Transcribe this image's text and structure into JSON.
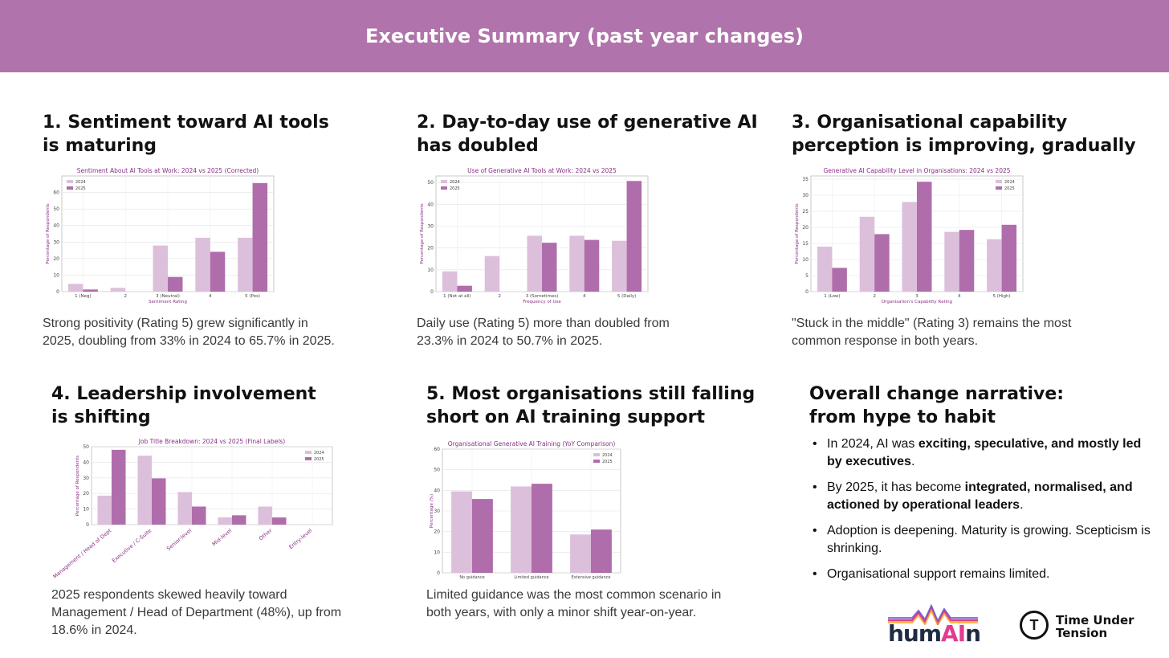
{
  "header": {
    "title": "Executive Summary (past year changes)"
  },
  "sections": [
    {
      "title_l1": "1. Sentiment toward AI tools",
      "title_l2": "is maturing",
      "text_l1": "Strong positivity (Rating 5) grew significantly in",
      "text_l2": "2025, doubling from 33% in 2024 to 65.7% in 2025."
    },
    {
      "title_l1": "2. Day-to-day use of generative AI",
      "title_l2": "has doubled",
      "text_l1": "Daily use (Rating 5) more than doubled from",
      "text_l2": "23.3% in 2024 to 50.7% in 2025."
    },
    {
      "title_l1": "3. Organisational capability",
      "title_l2": "perception is improving, gradually",
      "text_l1": "\"Stuck in the middle\" (Rating 3) remains the most",
      "text_l2": "common response in both years."
    },
    {
      "title_l1": "4. Leadership involvement",
      "title_l2": "is shifting",
      "text_l1": "2025 respondents skewed heavily toward",
      "text_l2": "Management / Head of Department (48%), up from",
      "text_l3": "18.6% in 2024."
    },
    {
      "title_l1": "5. Most organisations still falling",
      "title_l2": "short on AI training support",
      "text_l1": "Limited guidance was the most common scenario in",
      "text_l2": "both years, with only a minor shift year-on-year."
    }
  ],
  "narrative": {
    "title_l1": "Overall change narrative:",
    "title_l2": "from hype to habit",
    "items": [
      {
        "pre": "In 2024, AI was ",
        "bold": "exciting, speculative, and mostly led by executives",
        "post": "."
      },
      {
        "pre": "By 2025, it has become ",
        "bold": "integrated, normalised, and actioned by operational leaders",
        "post": "."
      },
      {
        "pre": "Adoption is deepening. Maturity is growing. Scepticism is shrinking.",
        "bold": "",
        "post": ""
      },
      {
        "pre": "Organisational support remains limited.",
        "bold": "",
        "post": ""
      }
    ]
  },
  "logos": {
    "humain_pre": "hum",
    "humain_ai": "AI",
    "humain_post": "n",
    "tut_l1": "Time Under",
    "tut_l2": "Tension",
    "tut_mark": "T"
  },
  "colors": {
    "header": "#b173ab",
    "light": "#dcbfdb",
    "dark": "#b06dab",
    "titlePurple": "#8a2f86"
  },
  "chart_data": [
    {
      "type": "bar",
      "title": "Sentiment About AI Tools at Work: 2024 vs 2025 (Corrected)",
      "xlabel": "Sentiment Rating",
      "ylabel": "Percentage of Respondents",
      "categories": [
        "1 (Neg)",
        "2",
        "3 (Neutral)",
        "4",
        "5 (Pos)"
      ],
      "series": [
        {
          "name": "2024",
          "values": [
            4.7,
            2.3,
            27.9,
            32.6,
            32.6
          ]
        },
        {
          "name": "2025",
          "values": [
            1.3,
            0,
            8.9,
            24.1,
            65.7
          ]
        }
      ],
      "ylim": [
        0,
        70
      ],
      "yticks": [
        0,
        10,
        20,
        30,
        40,
        50,
        60
      ],
      "legend": "top-left",
      "grid": true
    },
    {
      "type": "bar",
      "title": "Use of Generative AI Tools at Work: 2024 vs 2025",
      "xlabel": "Frequency of Use",
      "ylabel": "Percentage of Respondents",
      "categories": [
        "1 (Not at all)",
        "2",
        "3 (Sometimes)",
        "4",
        "5 (Daily)"
      ],
      "series": [
        {
          "name": "2024",
          "values": [
            9.3,
            16.3,
            25.6,
            25.6,
            23.3
          ]
        },
        {
          "name": "2025",
          "values": [
            2.7,
            0,
            22.4,
            23.7,
            50.7
          ]
        }
      ],
      "ylim": [
        0,
        53
      ],
      "yticks": [
        0,
        10,
        20,
        30,
        40,
        50
      ],
      "legend": "top-left",
      "grid": true
    },
    {
      "type": "bar",
      "title": "Generative AI Capability Level in Organisations: 2024 vs 2025",
      "xlabel": "Organisation's Capability Rating",
      "ylabel": "Percentage of Respondents",
      "categories": [
        "1 (Low)",
        "2",
        "3",
        "4",
        "5 (High)"
      ],
      "series": [
        {
          "name": "2024",
          "values": [
            14.0,
            23.3,
            27.9,
            18.6,
            16.3
          ]
        },
        {
          "name": "2025",
          "values": [
            7.4,
            17.9,
            34.2,
            19.2,
            20.8
          ]
        }
      ],
      "ylim": [
        0,
        36
      ],
      "yticks": [
        0,
        5,
        10,
        15,
        20,
        25,
        30,
        35
      ],
      "legend": "top-right",
      "grid": true
    },
    {
      "type": "bar",
      "title": "Job Title Breakdown: 2024 vs 2025 (Final Labels)",
      "xlabel": "",
      "ylabel": "Percentage of Respondents",
      "categories": [
        "Management / Head of Dept",
        "Executive / C-Suite",
        "Senior-level",
        "Mid-level",
        "Other",
        "Entry-level"
      ],
      "series": [
        {
          "name": "2024",
          "values": [
            18.6,
            44.2,
            20.9,
            4.7,
            11.6,
            0
          ]
        },
        {
          "name": "2025",
          "values": [
            48,
            29.7,
            11.6,
            6.0,
            4.6,
            0
          ]
        }
      ],
      "ylim": [
        0,
        50
      ],
      "yticks": [
        0,
        10,
        20,
        30,
        40,
        50
      ],
      "legend": "top-right",
      "grid": true
    },
    {
      "type": "bar",
      "title": "Organisational Generative AI Training (YoY Comparison)",
      "xlabel": "",
      "ylabel": "Percentage (%)",
      "categories": [
        "No guidance",
        "Limited guidance",
        "Extensive guidance"
      ],
      "series": [
        {
          "name": "2024",
          "values": [
            39.5,
            41.9,
            18.6
          ]
        },
        {
          "name": "2025",
          "values": [
            35.8,
            43.2,
            21.0
          ]
        }
      ],
      "ylim": [
        0,
        60
      ],
      "yticks": [
        0,
        10,
        20,
        30,
        40,
        50,
        60
      ],
      "legend": "top-right",
      "grid": true
    }
  ]
}
